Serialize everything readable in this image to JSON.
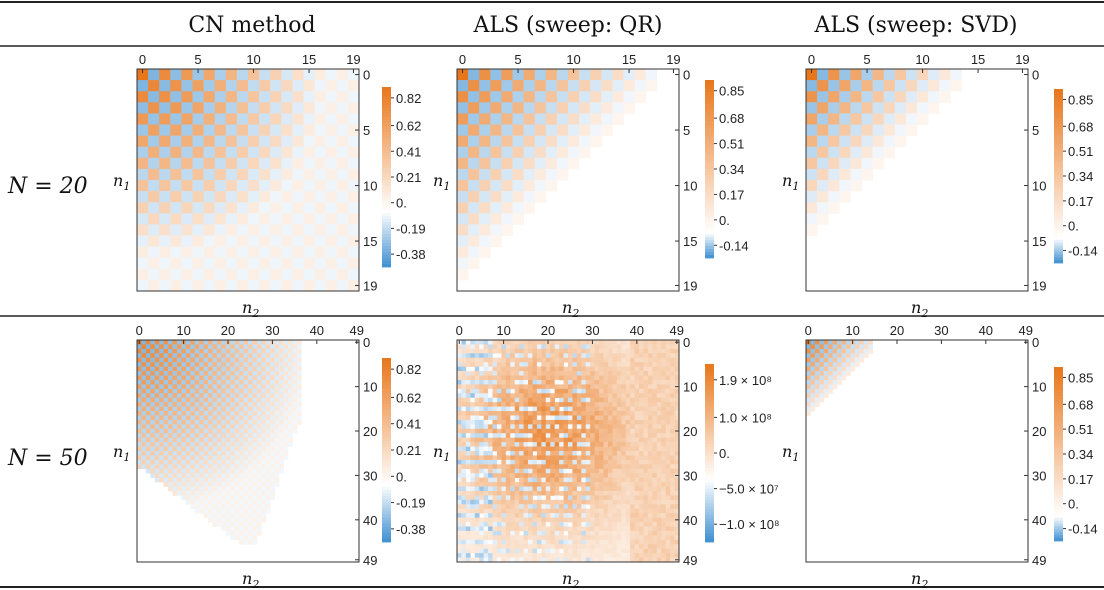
{
  "table": {
    "column_headers": [
      "CN method",
      "ALS (sweep: QR)",
      "ALS (sweep: SVD)"
    ],
    "row_labels": [
      "N = 20",
      "N = 50"
    ]
  },
  "axis_labels": {
    "x": "n",
    "x_sub": "2",
    "y": "n",
    "y_sub": "1"
  },
  "colors": {
    "positive": "#e8761a",
    "negative": "#3e8fd0",
    "neutral": "#ffffff"
  },
  "chart_data": [
    {
      "type": "heatmap",
      "row": "N = 20",
      "column": "CN method",
      "size": 20,
      "xlabel": "n2",
      "ylabel": "n1",
      "x_ticks": [
        "0",
        "5",
        "10",
        "15",
        "19"
      ],
      "y_ticks": [
        "0",
        "5",
        "10",
        "15",
        "19"
      ],
      "colorbar_ticks": [
        "0.82",
        "0.62",
        "0.41",
        "0.21",
        "0.",
        "-0.19",
        "-0.38"
      ],
      "colorbar_range": [
        -0.38,
        0.85
      ],
      "pattern": "checkerboard",
      "max": 0.82,
      "min": -0.38,
      "support": "full",
      "decay": 0.06
    },
    {
      "type": "heatmap",
      "row": "N = 20",
      "column": "ALS (sweep: QR)",
      "size": 20,
      "xlabel": "n2",
      "ylabel": "n1",
      "x_ticks": [
        "0",
        "5",
        "10",
        "15",
        "19"
      ],
      "y_ticks": [
        "0",
        "5",
        "10",
        "15",
        "19"
      ],
      "colorbar_ticks": [
        "0.85",
        "0.68",
        "0.51",
        "0.34",
        "0.17",
        "0.",
        "-0.14"
      ],
      "colorbar_range": [
        -0.14,
        0.85
      ],
      "pattern": "checkerboard",
      "max": 0.85,
      "min": -0.14,
      "support": "triangle",
      "triangle_extent": 17
    },
    {
      "type": "heatmap",
      "row": "N = 20",
      "column": "ALS (sweep: SVD)",
      "size": 20,
      "xlabel": "n2",
      "ylabel": "n1",
      "x_ticks": [
        "0",
        "5",
        "10",
        "15",
        "19"
      ],
      "y_ticks": [
        "0",
        "5",
        "10",
        "15",
        "19"
      ],
      "colorbar_ticks": [
        "0.85",
        "0.68",
        "0.51",
        "0.34",
        "0.17",
        "0.",
        "-0.14"
      ],
      "colorbar_range": [
        -0.14,
        0.85
      ],
      "pattern": "checkerboard",
      "max": 0.85,
      "min": -0.14,
      "support": "triangle",
      "triangle_extent": 13
    },
    {
      "type": "heatmap",
      "row": "N = 50",
      "column": "CN method",
      "size": 50,
      "xlabel": "n2",
      "ylabel": "n1",
      "x_ticks": [
        "0",
        "10",
        "20",
        "30",
        "40",
        "49"
      ],
      "y_ticks": [
        "0",
        "10",
        "20",
        "30",
        "40",
        "49"
      ],
      "colorbar_ticks": [
        "0.82",
        "0.62",
        "0.41",
        "0.21",
        "0.",
        "-0.19",
        "-0.38"
      ],
      "colorbar_range": [
        -0.38,
        0.85
      ],
      "pattern": "checkerboard",
      "max": 0.82,
      "min": -0.38,
      "support": "blob",
      "blob_extent": 36,
      "blob_rows": 45
    },
    {
      "type": "heatmap",
      "row": "N = 50",
      "column": "ALS (sweep: QR)",
      "size": 50,
      "xlabel": "n2",
      "ylabel": "n1",
      "x_ticks": [
        "0",
        "10",
        "20",
        "30",
        "40",
        "49"
      ],
      "y_ticks": [
        "0",
        "10",
        "20",
        "30",
        "40",
        "49"
      ],
      "colorbar_ticks": [
        "1.9 × 10⁸",
        "1.0 × 10⁸",
        "0.",
        "−5.0 × 10⁷",
        "−1.0 × 10⁸"
      ],
      "colorbar_range": [
        -105000000.0,
        195000000.0
      ],
      "pattern": "noise",
      "max": 190000000.0,
      "min": -100000000.0,
      "support": "full",
      "hotspot": [
        20,
        20
      ]
    },
    {
      "type": "heatmap",
      "row": "N = 50",
      "column": "ALS (sweep: SVD)",
      "size": 50,
      "xlabel": "n2",
      "ylabel": "n1",
      "x_ticks": [
        "0",
        "10",
        "20",
        "30",
        "40",
        "49"
      ],
      "y_ticks": [
        "0",
        "10",
        "20",
        "30",
        "40",
        "49"
      ],
      "colorbar_ticks": [
        "0.85",
        "0.68",
        "0.51",
        "0.34",
        "0.17",
        "0.",
        "-0.14"
      ],
      "colorbar_range": [
        -0.14,
        0.85
      ],
      "pattern": "checkerboard",
      "max": 0.85,
      "min": -0.14,
      "support": "triangle",
      "triangle_extent": 14
    }
  ]
}
